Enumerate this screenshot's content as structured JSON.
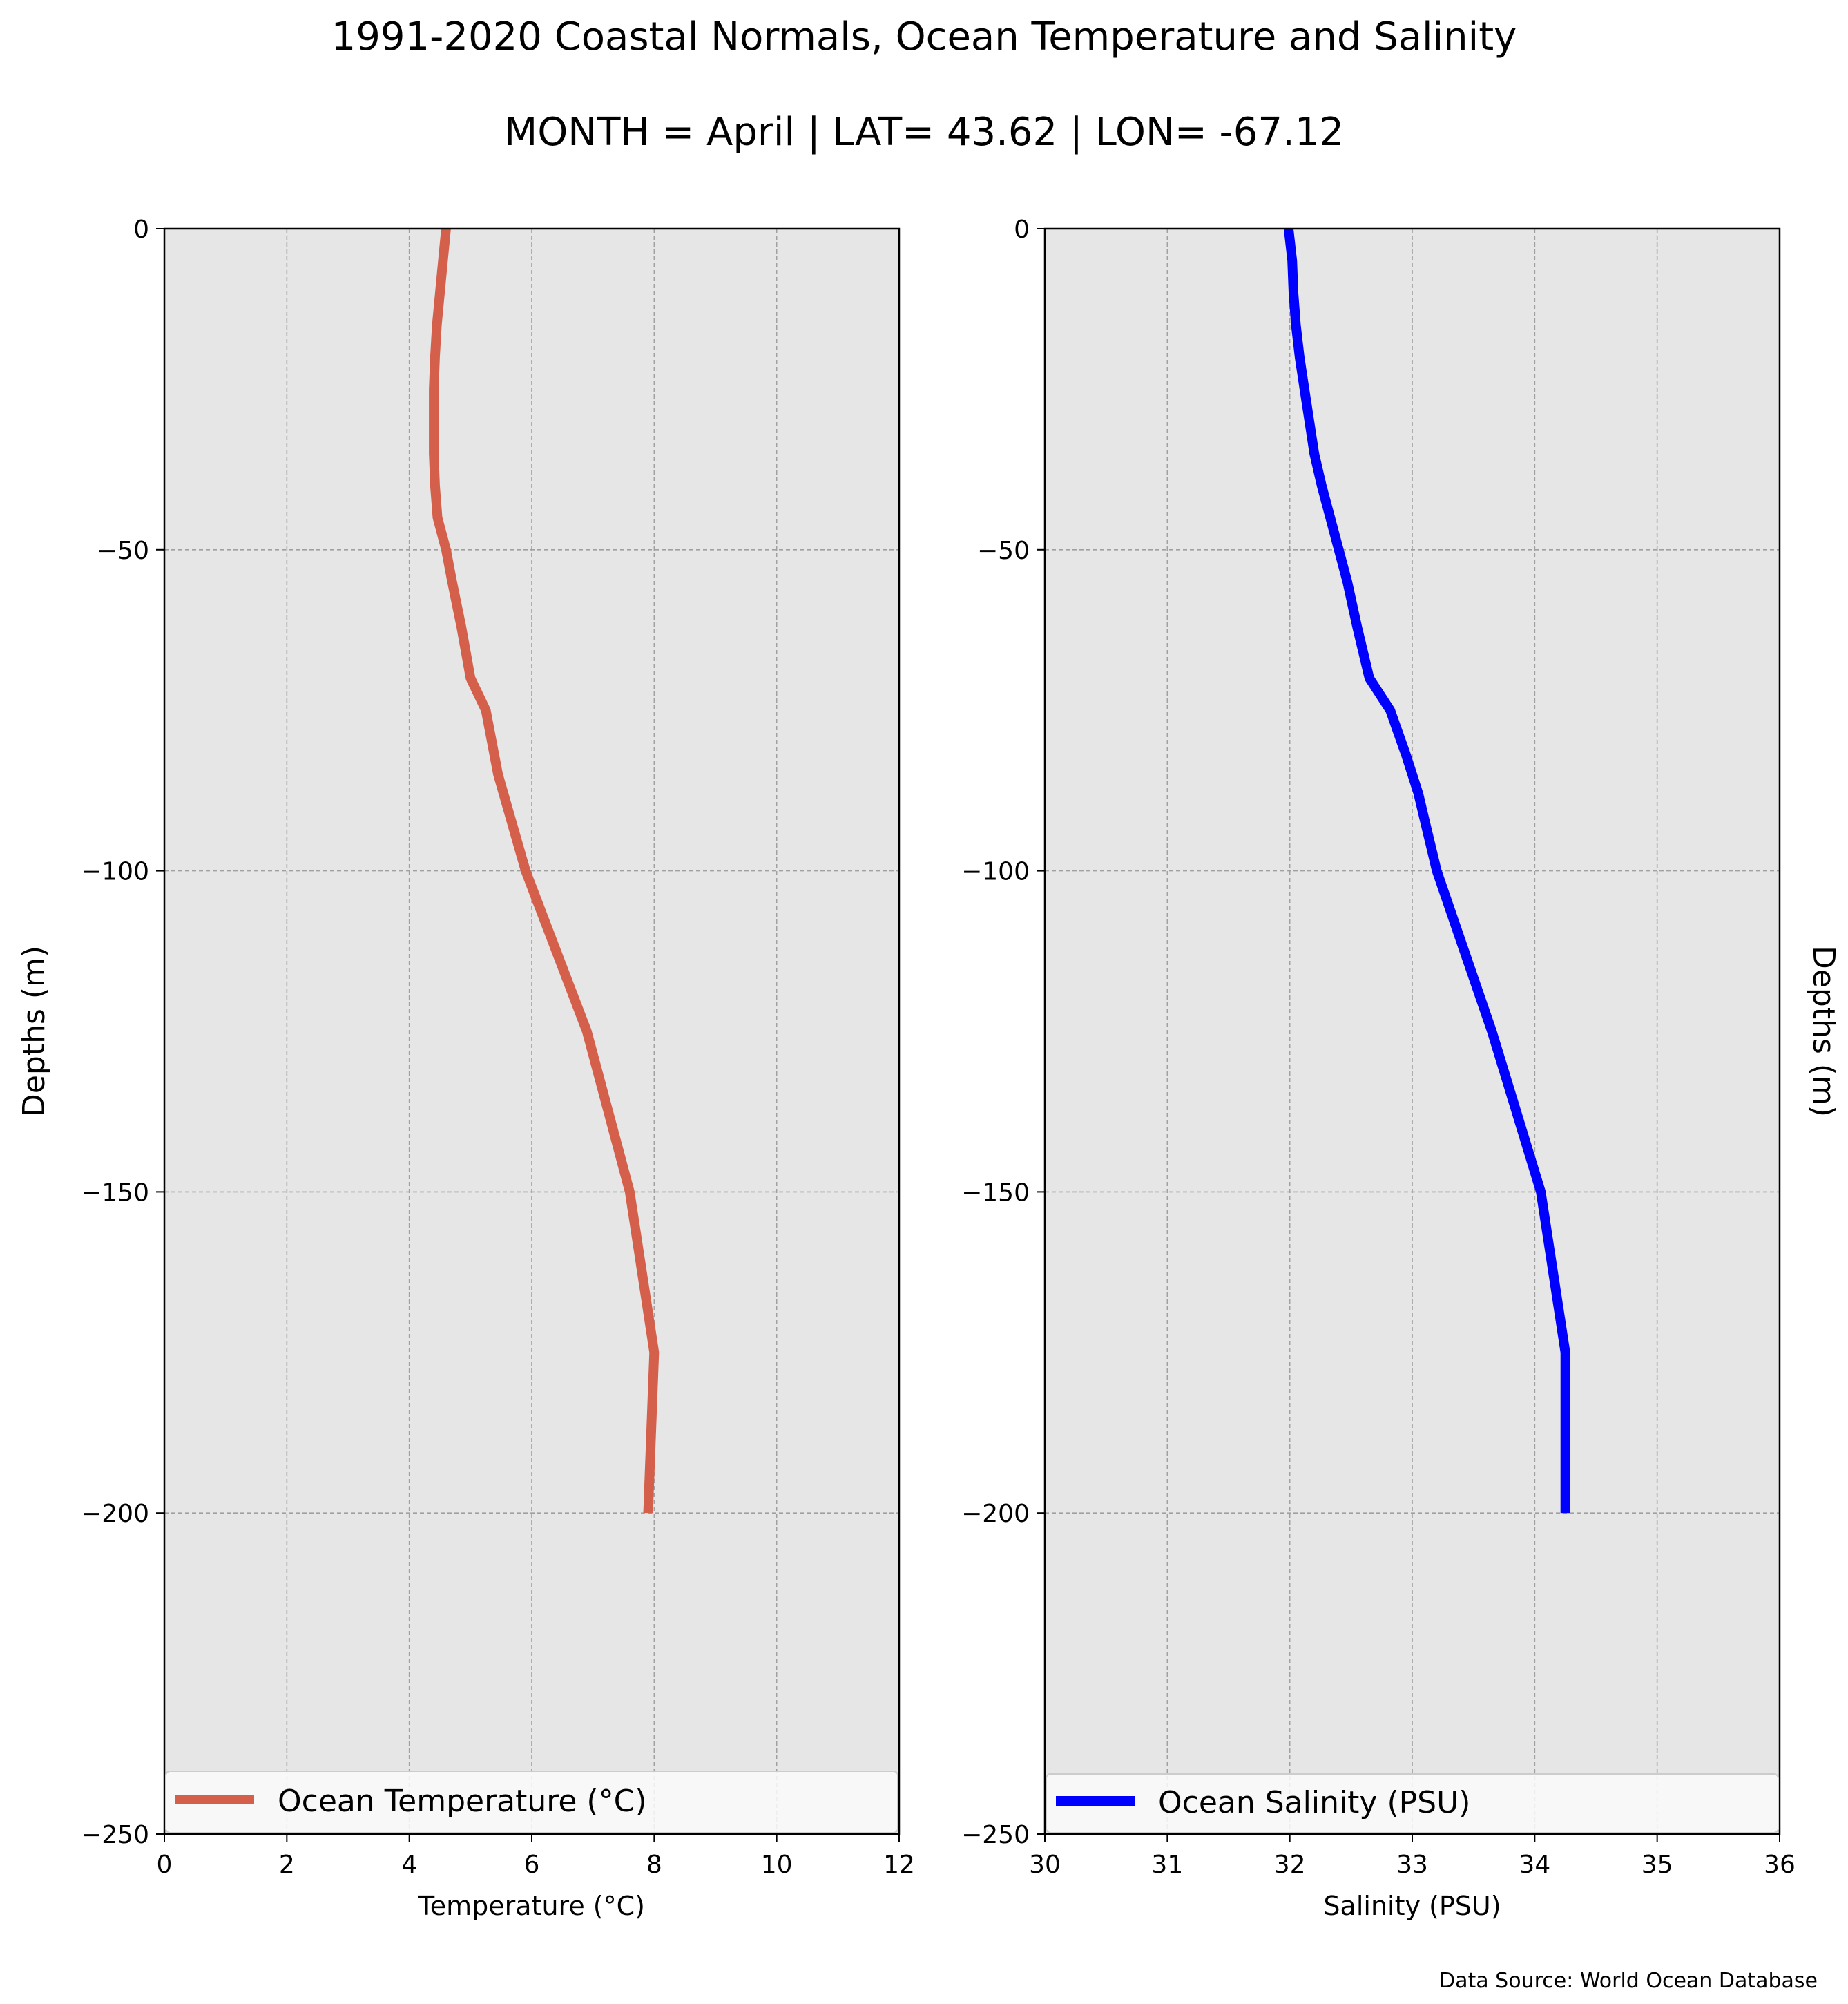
{
  "figure": {
    "title": "1991-2020 Coastal Normals, Ocean Temperature and Salinity",
    "subtitle": "MONTH = April | LAT= 43.62 | LON= -67.12",
    "source": "Data Source: World Ocean Database"
  },
  "chart_data": [
    {
      "type": "line",
      "xlabel": "Temperature (°C)",
      "ylabel": "Depths (m)",
      "xlim": [
        0,
        12
      ],
      "ylim": [
        -250,
        0
      ],
      "xticks": [
        "0",
        "2",
        "4",
        "6",
        "8",
        "10",
        "12"
      ],
      "yticks": [
        "0",
        "−50",
        "−100",
        "−150",
        "−200",
        "−250"
      ],
      "grid": true,
      "legend_position": "bottom",
      "series": [
        {
          "name": "Ocean Temperature (°C)",
          "color": "#d45f4b",
          "x": [
            4.6,
            4.55,
            4.5,
            4.45,
            4.42,
            4.4,
            4.4,
            4.4,
            4.42,
            4.46,
            4.6,
            4.7,
            4.85,
            5.0,
            5.25,
            5.45,
            5.9,
            6.9,
            7.6,
            8.0,
            7.9
          ],
          "y": [
            0,
            -5,
            -10,
            -15,
            -20,
            -25,
            -30,
            -35,
            -40,
            -45,
            -50,
            -55,
            -62,
            -70,
            -75,
            -85,
            -100,
            -125,
            -150,
            -175,
            -200
          ]
        }
      ]
    },
    {
      "type": "line",
      "xlabel": "Salinity (PSU)",
      "ylabel": "Depths (m)",
      "xlim": [
        30,
        36
      ],
      "ylim": [
        -250,
        0
      ],
      "xticks": [
        "30",
        "31",
        "32",
        "33",
        "34",
        "35",
        "36"
      ],
      "yticks": [
        "0",
        "−50",
        "−100",
        "−150",
        "−200",
        "−250"
      ],
      "grid": true,
      "legend_position": "bottom",
      "series": [
        {
          "name": "Ocean Salinity (PSU)",
          "color": "#0000ff",
          "x": [
            31.99,
            32.02,
            32.03,
            32.05,
            32.08,
            32.12,
            32.16,
            32.2,
            32.26,
            32.33,
            32.4,
            32.47,
            32.55,
            32.65,
            32.82,
            32.95,
            33.05,
            33.1,
            33.2,
            33.65,
            34.05,
            34.25,
            34.25
          ],
          "y": [
            0,
            -5,
            -10,
            -15,
            -20,
            -25,
            -30,
            -35,
            -40,
            -45,
            -50,
            -55,
            -62,
            -70,
            -75,
            -82,
            -88,
            -92,
            -100,
            -125,
            -150,
            -175,
            -200
          ]
        }
      ]
    }
  ]
}
